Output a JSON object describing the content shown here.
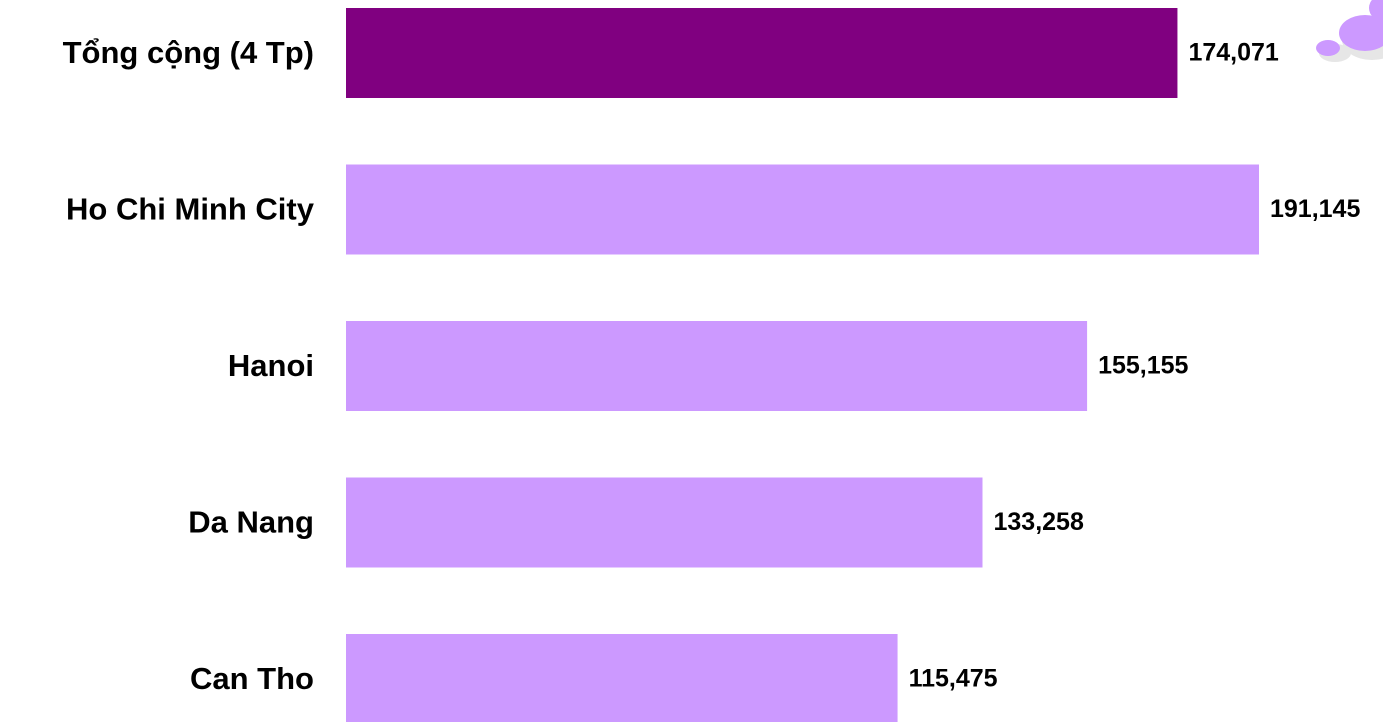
{
  "chart_data": {
    "type": "bar",
    "orientation": "horizontal",
    "categories": [
      "Tổng cộng (4 Tp)",
      "Ho Chi Minh City",
      "Hanoi",
      "Da Nang",
      "Can Tho"
    ],
    "values": [
      174071,
      191145,
      155155,
      133258,
      115475
    ],
    "value_labels": [
      "174,071",
      "191,145",
      "155,155",
      "133,258",
      "115,475"
    ],
    "colors": [
      "#800080",
      "#cc99ff",
      "#cc99ff",
      "#cc99ff",
      "#cc99ff"
    ]
  }
}
